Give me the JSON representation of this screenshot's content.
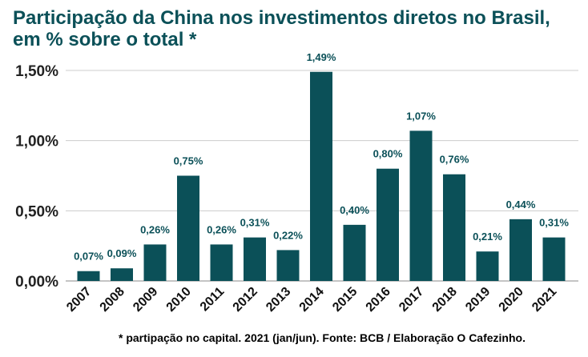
{
  "chart_data": {
    "type": "bar",
    "title_line1": "Participação da China nos investimentos diretos no Brasil,",
    "title_line2": "em % sobre o total *",
    "categories": [
      "2007",
      "2008",
      "2009",
      "2010",
      "2011",
      "2012",
      "2013",
      "2014",
      "2015",
      "2016",
      "2017",
      "2018",
      "2019",
      "2020",
      "2021"
    ],
    "values": [
      0.07,
      0.09,
      0.26,
      0.75,
      0.26,
      0.31,
      0.22,
      1.49,
      0.4,
      0.8,
      1.07,
      0.76,
      0.21,
      0.44,
      0.31
    ],
    "value_labels": [
      "0,07%",
      "0,09%",
      "0,26%",
      "0,75%",
      "0,26%",
      "0,31%",
      "0,22%",
      "1,49%",
      "0,40%",
      "0,80%",
      "1,07%",
      "0,76%",
      "0,21%",
      "0,44%",
      "0,31%"
    ],
    "yticks": [
      0,
      0.5,
      1.0,
      1.5
    ],
    "ytick_labels": [
      "0,00%",
      "0,50%",
      "1,00%",
      "1,50%"
    ],
    "ylim": [
      0,
      1.5
    ],
    "grid": true,
    "bar_color": "#0b5058",
    "title_color": "#0b5058",
    "label_color": "#0b5058",
    "grid_color": "#cccccc",
    "footnote": "* partipação no capital. 2021 (jan/jun). Fonte: BCB / Elaboração O Cafezinho."
  }
}
